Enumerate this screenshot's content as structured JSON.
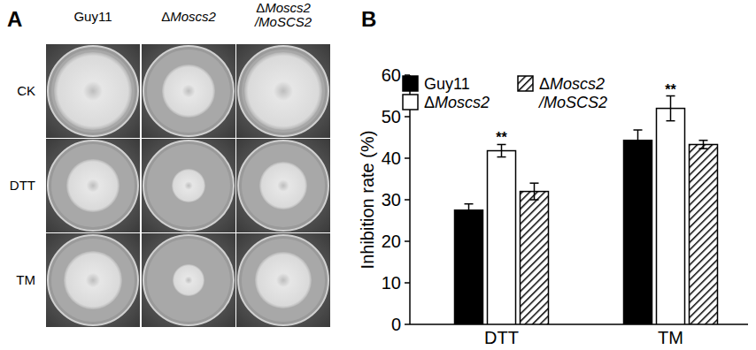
{
  "panel_labels": [
    "A",
    "B"
  ],
  "plate_figure": {
    "columns": [
      "Guy11",
      "ΔMoscs2",
      "ΔMoscs2/MoSCS2"
    ],
    "rows": [
      "CK",
      "DTT",
      "TM"
    ]
  },
  "chart_data": {
    "type": "bar",
    "y_label": "Inhibition rate (%)",
    "categories": [
      "DTT",
      "TM"
    ],
    "series": [
      {
        "name": "Guy11",
        "color": "#000000",
        "values": [
          27.5,
          44.3
        ],
        "errors": [
          1.5,
          2.5
        ]
      },
      {
        "name": "ΔMoscs2",
        "color": "#ffffff",
        "values": [
          41.8,
          52.0
        ],
        "errors": [
          1.5,
          3.0
        ]
      },
      {
        "name": "ΔMoscs2/MoSCS2",
        "color": "#000000",
        "line_style": "hatched",
        "values": [
          32.0,
          43.3
        ],
        "errors": [
          2.0,
          1.0
        ]
      }
    ],
    "annotations": [
      {
        "text": "**",
        "category": "DTT",
        "series": "ΔMoscs2"
      },
      {
        "text": "**",
        "category": "TM",
        "series": "ΔMoscs2"
      }
    ],
    "ylim": [
      0,
      60
    ],
    "yticks": [
      0,
      10,
      20,
      30,
      40,
      50,
      60
    ],
    "grid": false,
    "legend": "top"
  }
}
